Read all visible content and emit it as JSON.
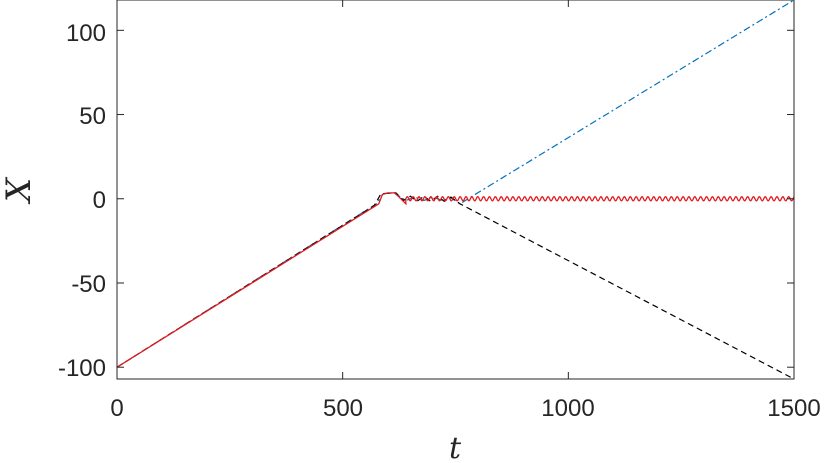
{
  "chart_data": {
    "type": "line",
    "title": "",
    "xlabel": "t",
    "ylabel": "X",
    "xlim": [
      0,
      1500
    ],
    "ylim": [
      -107,
      118
    ],
    "xticks": [
      0,
      500,
      1000,
      1500
    ],
    "xtick_labels": [
      "0",
      "500",
      "1000",
      "1500"
    ],
    "yticks": [
      100,
      50,
      0,
      -50,
      -100
    ],
    "ytick_labels": [
      "100",
      "50",
      "0",
      "-50",
      "-100"
    ],
    "grid": false,
    "legend": "none",
    "series": [
      {
        "color": "#0072bd",
        "style": "dash-dot",
        "points": [
          [
            0,
            -100
          ],
          [
            575,
            -3
          ],
          [
            590,
            3
          ],
          [
            615,
            3.5
          ],
          [
            628,
            1
          ],
          [
            640,
            -1
          ],
          [
            660,
            1
          ],
          [
            680,
            -1
          ],
          [
            700,
            1
          ],
          [
            720,
            -1
          ],
          [
            740,
            0.5
          ],
          [
            760,
            -3
          ],
          [
            790,
            2
          ],
          [
            1500,
            118
          ]
        ]
      },
      {
        "color": "#000000",
        "style": "dashed",
        "points": [
          [
            0,
            -100
          ],
          [
            570,
            -4
          ],
          [
            585,
            3
          ],
          [
            618,
            3.5
          ],
          [
            635,
            -1
          ],
          [
            650,
            1.5
          ],
          [
            665,
            -1.5
          ],
          [
            680,
            1.5
          ],
          [
            695,
            -1.5
          ],
          [
            710,
            1.5
          ],
          [
            725,
            -1.5
          ],
          [
            740,
            1
          ],
          [
            760,
            -3
          ],
          [
            1500,
            -107
          ]
        ]
      },
      {
        "color": "#e41a1c",
        "style": "solid",
        "points": [
          [
            0,
            -100
          ],
          [
            580,
            -3
          ],
          [
            588,
            2.5
          ],
          [
            600,
            3.5
          ],
          [
            615,
            3.5
          ],
          [
            625,
            1
          ],
          [
            640,
            -3
          ],
          [
            655,
            -2
          ],
          [
            670,
            1
          ],
          [
            700,
            1
          ],
          [
            760,
            0
          ],
          [
            1500,
            0
          ]
        ],
        "oscillation": {
          "start": 640,
          "end": 1500,
          "amplitude": 1.2,
          "period": 13
        }
      }
    ]
  }
}
